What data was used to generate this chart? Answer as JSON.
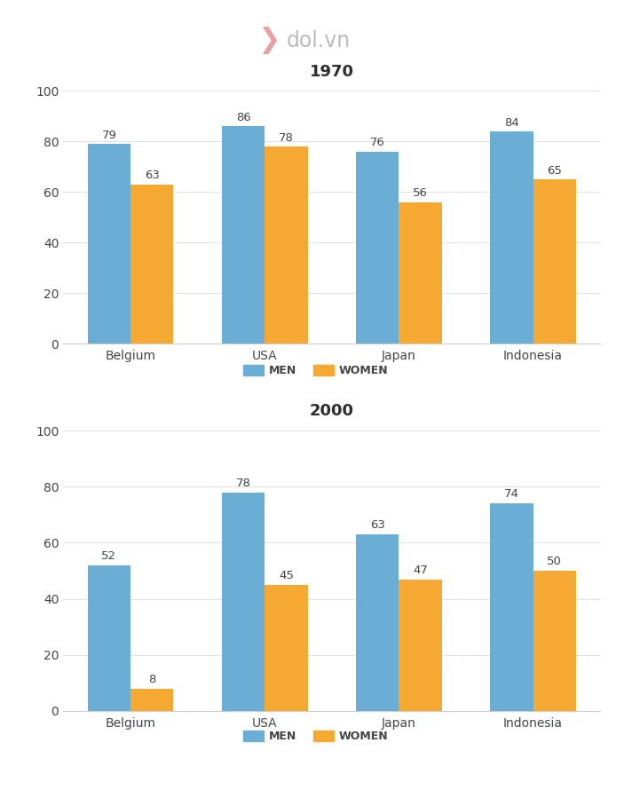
{
  "title1": "1970",
  "title2": "2000",
  "categories": [
    "Belgium",
    "USA",
    "Japan",
    "Indonesia"
  ],
  "men_1970": [
    79,
    86,
    76,
    84
  ],
  "women_1970": [
    63,
    78,
    56,
    65
  ],
  "men_2000": [
    52,
    78,
    63,
    74
  ],
  "women_2000": [
    8,
    45,
    47,
    50
  ],
  "men_color": "#6AAED6",
  "women_color": "#F5A832",
  "bar_width": 0.32,
  "ylim": [
    0,
    100
  ],
  "yticks": [
    0,
    20,
    40,
    60,
    80,
    100
  ],
  "legend_men": "MEN",
  "legend_women": "WOMEN",
  "title_fontsize": 13,
  "tick_fontsize": 10,
  "value_fontsize": 9.5,
  "bg_color": "#ffffff",
  "grid_color": "#e0e0e0",
  "text_color": "#444444",
  "logo_color": "#bbbbbb",
  "logo_icon_color": "#e8a0a0"
}
